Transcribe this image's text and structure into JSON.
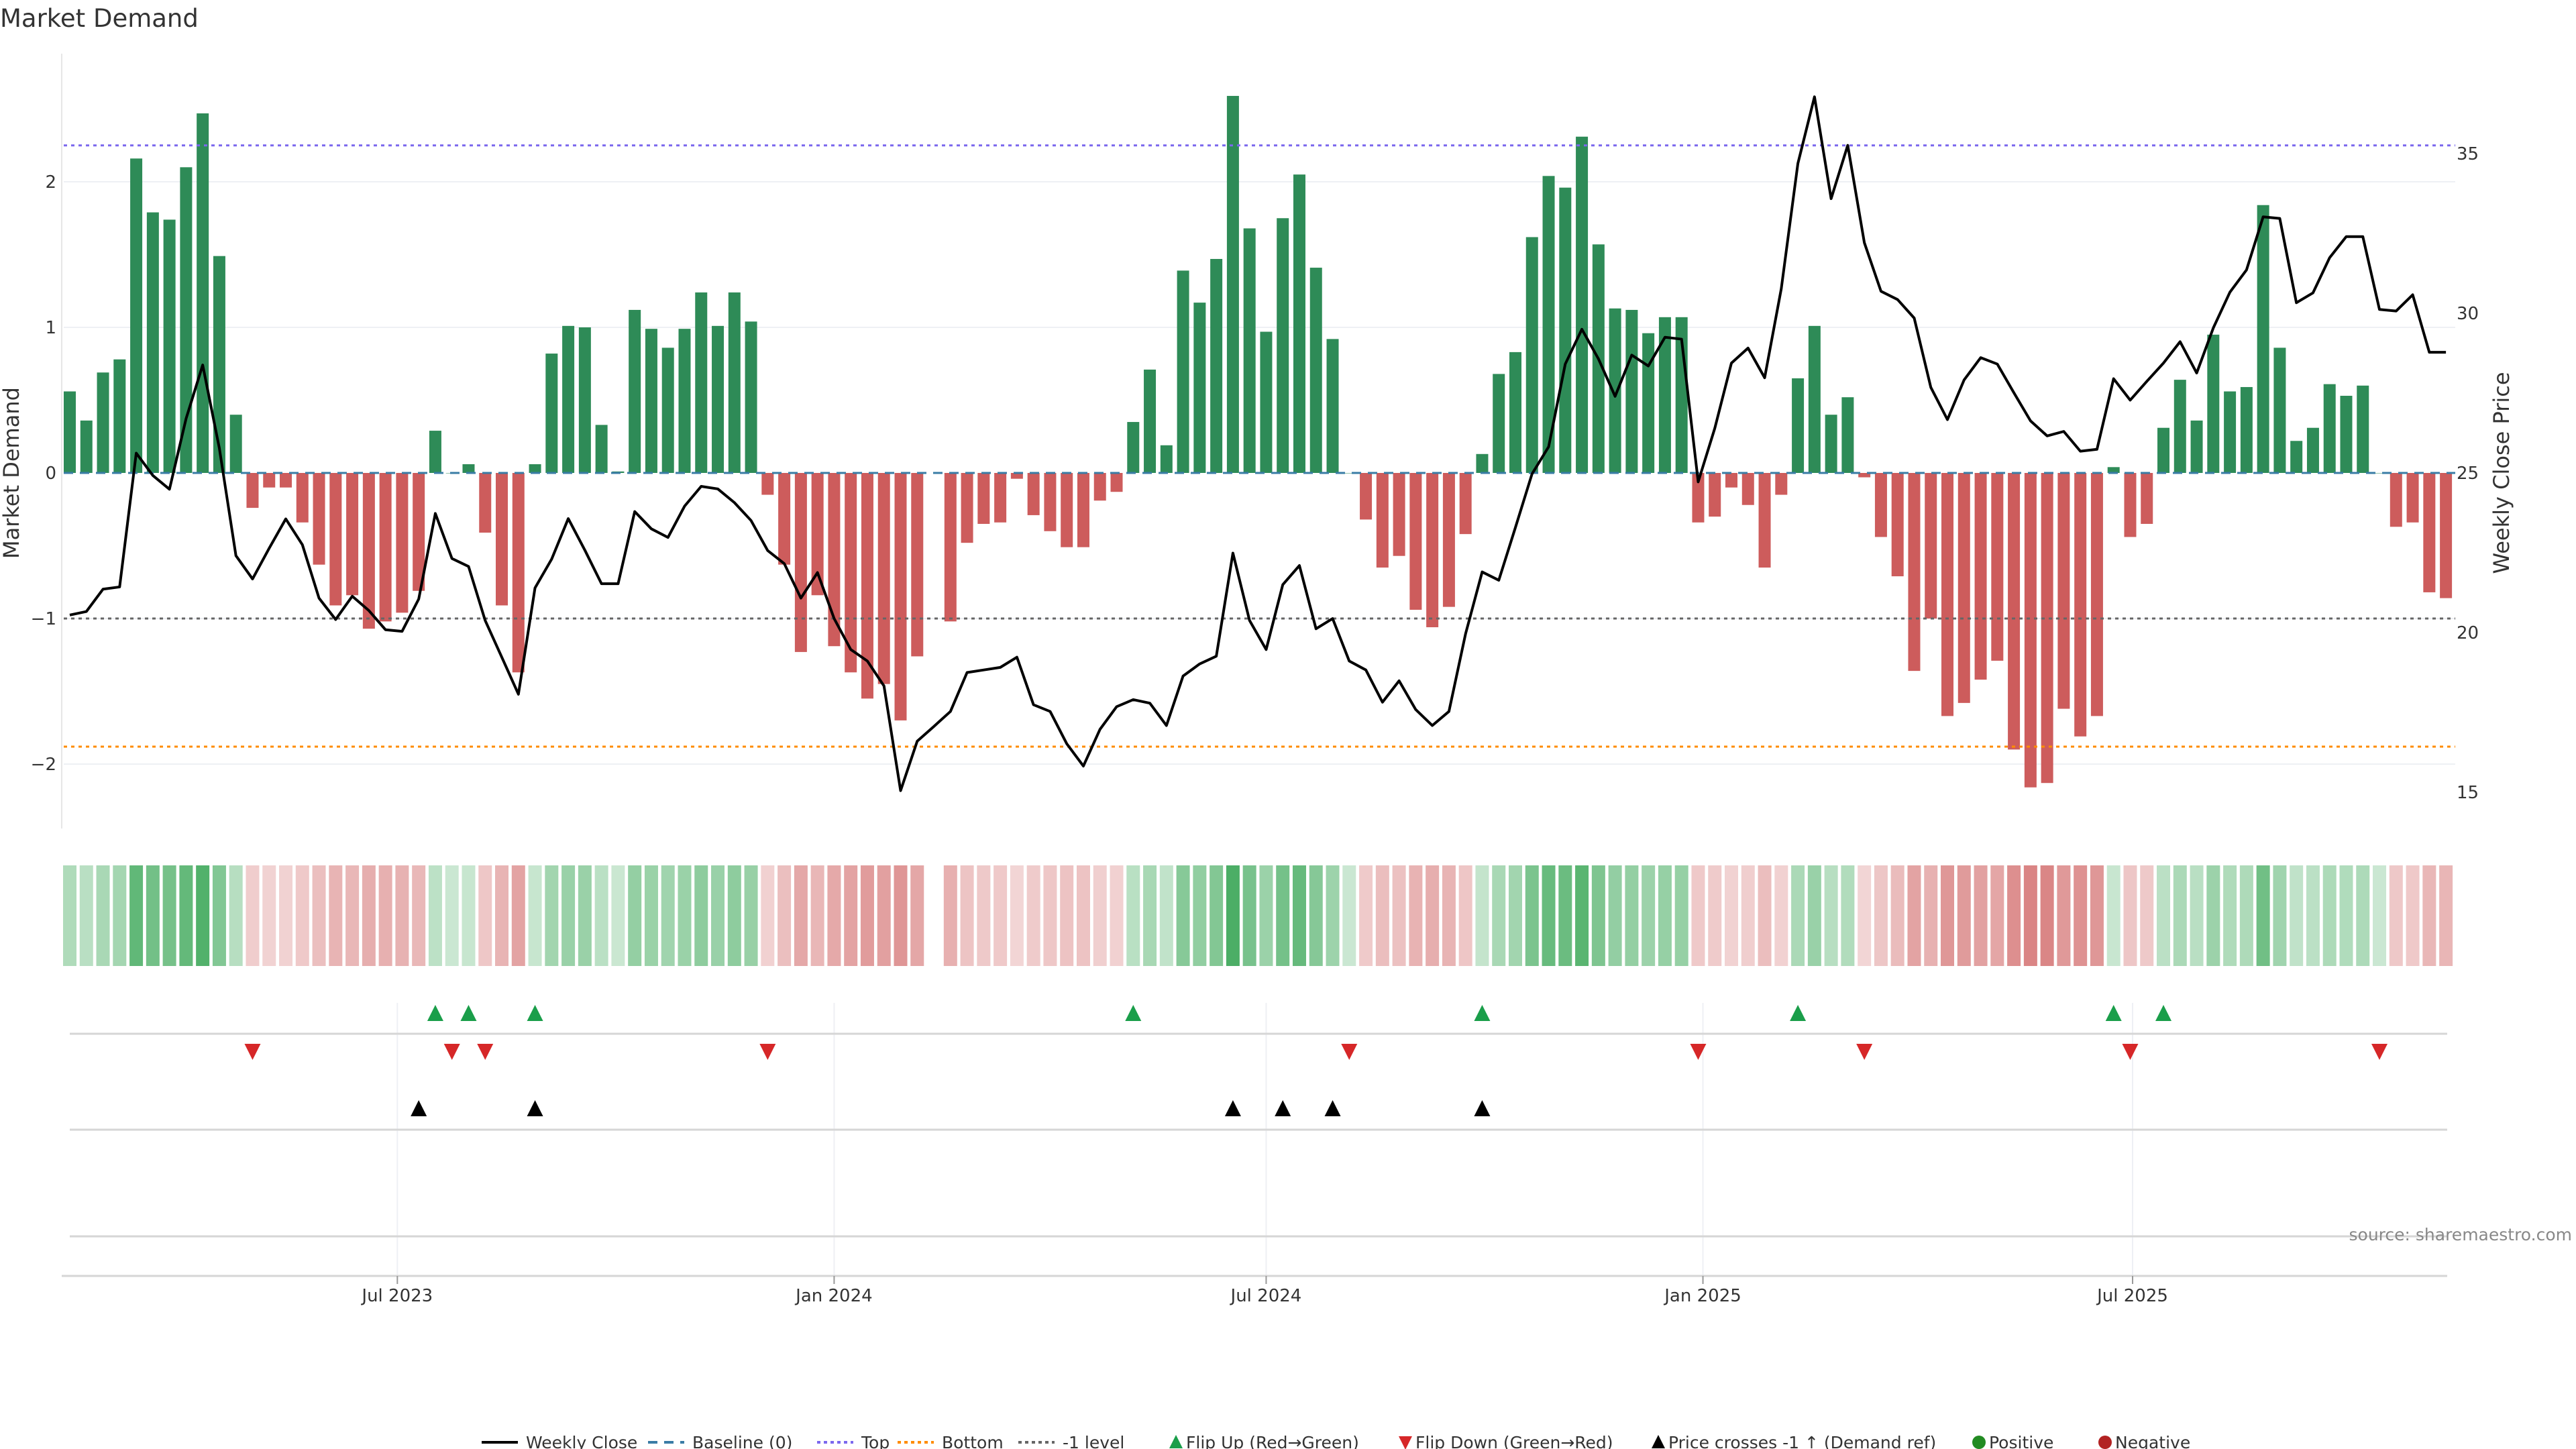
{
  "chart_data": {
    "type": "bar",
    "title": "Market Demand",
    "ylabel": "Market Demand",
    "y2label": "Weekly Close Price",
    "source": "source: sharemaestro.com",
    "x_start": "2023-02-13",
    "x_step_days": 7,
    "ylim": [
      -2.47,
      2.85
    ],
    "y2lim": [
      13.6,
      38.0
    ],
    "yticks": [
      {
        "v": -2,
        "label": "−2"
      },
      {
        "v": -1,
        "label": "−1"
      },
      {
        "v": 0,
        "label": "0"
      },
      {
        "v": 1,
        "label": "1"
      },
      {
        "v": 2,
        "label": "2"
      }
    ],
    "y2ticks": [
      {
        "v": 15,
        "label": "15"
      },
      {
        "v": 20,
        "label": "20"
      },
      {
        "v": 25,
        "label": "25"
      },
      {
        "v": 30,
        "label": "30"
      },
      {
        "v": 35,
        "label": "35"
      }
    ],
    "xticks": [
      {
        "date": "2023-07-01",
        "label": "Jul 2023"
      },
      {
        "date": "2024-01-01",
        "label": "Jan 2024"
      },
      {
        "date": "2024-07-01",
        "label": "Jul 2024"
      },
      {
        "date": "2025-01-01",
        "label": "Jan 2025"
      },
      {
        "date": "2025-07-01",
        "label": "Jul 2025"
      }
    ],
    "reference_lines": {
      "baseline": 0,
      "top": 2.25,
      "bottom": -1.88,
      "minus_one": -1
    },
    "demand": [
      0.56,
      0.36,
      0.69,
      0.78,
      2.16,
      1.79,
      1.74,
      2.1,
      2.47,
      1.49,
      0.4,
      -0.24,
      -0.1,
      -0.1,
      -0.34,
      -0.63,
      -0.91,
      -0.84,
      -1.07,
      -1.02,
      -0.96,
      -0.81,
      0.29,
      0.0,
      0.06,
      -0.41,
      -0.91,
      -1.37,
      0.06,
      0.82,
      1.01,
      1.0,
      0.33,
      0.01,
      1.12,
      0.99,
      0.86,
      0.99,
      1.24,
      1.01,
      1.24,
      1.04,
      -0.15,
      -0.63,
      -1.23,
      -0.84,
      -1.19,
      -1.37,
      -1.55,
      -1.45,
      -1.7,
      -1.26,
      null,
      -1.02,
      -0.48,
      -0.35,
      -0.34,
      -0.04,
      -0.29,
      -0.4,
      -0.51,
      -0.51,
      -0.19,
      -0.13,
      0.35,
      0.71,
      0.19,
      1.39,
      1.17,
      1.47,
      2.59,
      1.68,
      0.97,
      1.75,
      2.05,
      1.41,
      0.92,
      0.0,
      -0.32,
      -0.65,
      -0.57,
      -0.94,
      -1.06,
      -0.92,
      -0.42,
      0.13,
      0.68,
      0.83,
      1.62,
      2.04,
      1.96,
      2.31,
      1.57,
      1.13,
      1.12,
      0.96,
      1.07,
      1.07,
      -0.34,
      -0.3,
      -0.1,
      -0.22,
      -0.65,
      -0.15,
      0.65,
      1.01,
      0.4,
      0.52,
      -0.03,
      -0.44,
      -0.71,
      -1.36,
      -1.0,
      -1.67,
      -1.58,
      -1.42,
      -1.29,
      -1.9,
      -2.16,
      -2.13,
      -1.62,
      -1.81,
      -1.67,
      0.04,
      -0.44,
      -0.35,
      0.31,
      0.64,
      0.36,
      0.95,
      0.56,
      0.59,
      1.84,
      0.86,
      0.22,
      0.31,
      0.61,
      0.53,
      0.6,
      0.0,
      -0.37,
      -0.34,
      -0.82,
      -0.86
    ],
    "weekly_close": [
      20.55,
      20.66,
      21.36,
      21.43,
      25.62,
      24.92,
      24.49,
      26.7,
      28.38,
      25.78,
      22.41,
      21.68,
      22.64,
      23.56,
      22.75,
      21.08,
      20.41,
      21.14,
      20.69,
      20.09,
      20.04,
      21.05,
      23.73,
      22.32,
      22.07,
      20.38,
      19.23,
      18.07,
      21.4,
      22.3,
      23.57,
      22.58,
      21.53,
      21.53,
      23.79,
      23.25,
      22.98,
      23.96,
      24.58,
      24.5,
      24.07,
      23.51,
      22.57,
      22.16,
      21.08,
      21.88,
      20.44,
      19.47,
      19.11,
      18.33,
      15.05,
      16.6,
      17.06,
      17.53,
      18.75,
      18.83,
      18.91,
      19.23,
      17.74,
      17.53,
      16.52,
      15.82,
      16.97,
      17.68,
      17.9,
      17.79,
      17.09,
      18.64,
      19.02,
      19.26,
      22.49,
      20.38,
      19.47,
      21.5,
      22.1,
      20.12,
      20.44,
      19.11,
      18.83,
      17.82,
      18.49,
      17.59,
      17.09,
      17.53,
      19.96,
      21.9,
      21.64,
      23.29,
      24.97,
      25.82,
      28.41,
      29.5,
      28.57,
      27.4,
      28.69,
      28.35,
      29.25,
      29.19,
      24.72,
      26.4,
      28.44,
      28.91,
      27.98,
      30.77,
      34.69,
      36.78,
      33.59,
      35.26,
      32.21,
      30.69,
      30.43,
      29.85,
      27.68,
      26.67,
      27.91,
      28.61,
      28.41,
      27.51,
      26.63,
      26.16,
      26.3,
      25.68,
      25.74,
      27.95,
      27.28,
      27.87,
      28.44,
      29.11,
      28.13,
      29.54,
      30.66,
      31.36,
      33.02,
      32.97,
      30.33,
      30.64,
      31.74,
      32.4,
      32.4,
      30.12,
      30.07,
      30.58,
      28.78,
      28.78
    ],
    "flip_up_index": [
      22,
      24,
      28,
      64,
      85,
      104,
      123,
      126
    ],
    "flip_down_index": [
      11,
      23,
      25,
      42,
      77,
      98,
      108,
      124,
      139
    ],
    "price_cross_index": [
      21,
      28,
      70,
      73,
      76,
      85
    ],
    "legend": {
      "position": "bottom-center",
      "items": [
        {
          "label": "Weekly Close",
          "kind": "line",
          "color": "#000000"
        },
        {
          "label": "Baseline (0)",
          "kind": "dash",
          "color": "#3a7ca5"
        },
        {
          "label": "Top",
          "kind": "dot",
          "color": "#7b68ee"
        },
        {
          "label": "Bottom",
          "kind": "dot",
          "color": "#ff8c00"
        },
        {
          "label": "-1 level",
          "kind": "dot",
          "color": "#666666"
        },
        {
          "label": "Flip Up (Red→Green)",
          "kind": "tri-up",
          "color": "#1a9e4a"
        },
        {
          "label": "Flip Down (Green→Red)",
          "kind": "tri-down",
          "color": "#d62728"
        },
        {
          "label": "Price crosses -1 ↑ (Demand ref)",
          "kind": "tri-up",
          "color": "#000000"
        },
        {
          "label": "Positive",
          "kind": "dot-marker",
          "color": "#228b22"
        },
        {
          "label": "Negative",
          "kind": "dot-marker",
          "color": "#b22222"
        }
      ]
    },
    "colors": {
      "positive_bar": "#2e8b57",
      "negative_bar": "#cd5c5c",
      "heat_pos": "#2ca04a",
      "heat_neg": "#cd5c5c"
    }
  }
}
